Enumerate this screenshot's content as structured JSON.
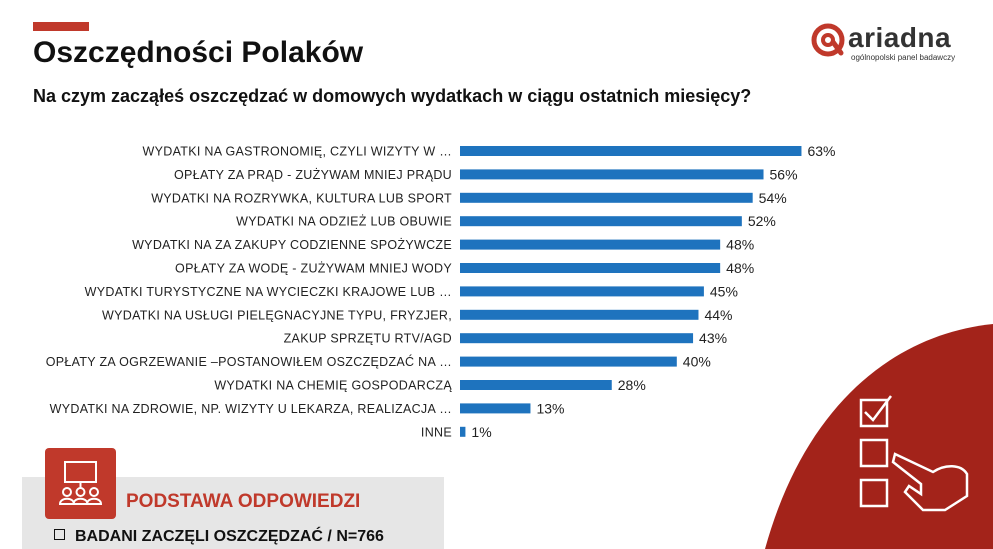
{
  "header": {
    "title": "Oszczędności Polaków",
    "question": "Na czym zacząłeś oszczędzać w domowych wydatkach w ciągu ostatnich miesięcy?"
  },
  "logo": {
    "name": "ariadna",
    "tagline": "ogólnopolski panel badawczy"
  },
  "colors": {
    "accent": "#c0392b",
    "bar": "#1e73be"
  },
  "base": {
    "heading": "PODSTAWA ODPOWIEDZI",
    "item": "BADANI ZACZĘLI OSZCZĘDZAĆ / N=766"
  },
  "chart_data": {
    "type": "bar",
    "orientation": "horizontal",
    "categories": [
      "WYDATKI NA GASTRONOMIĘ, CZYLI WIZYTY W …",
      "OPŁATY ZA PRĄD   - ZUŻYWAM MNIEJ PRĄDU",
      "WYDATKI NA ROZRYWKA, KULTURA LUB SPORT",
      "WYDATKI NA ODZIEŻ LUB OBUWIE",
      "WYDATKI NA ZA ZAKUPY CODZIENNE SPOŻYWCZE",
      "OPŁATY ZA WODĘ   - ZUŻYWAM MNIEJ WODY",
      "WYDATKI TURYSTYCZNE NA WYCIECZKI KRAJOWE LUB …",
      "WYDATKI NA USŁUGI PIELĘGNACYJNE TYPU, FRYZJER,",
      "ZAKUP SPRZĘTU RTV/AGD",
      "OPŁATY ZA OGRZEWANIE   –POSTANOWIŁEM OSZCZĘDZAĆ NA …",
      "WYDATKI NA CHEMIĘ GOSPODARCZĄ",
      "WYDATKI NA ZDROWIE, NP. WIZYTY U LEKARZA, REALIZACJA …",
      "INNE"
    ],
    "values": [
      63,
      56,
      54,
      52,
      48,
      48,
      45,
      44,
      43,
      40,
      28,
      13,
      1
    ],
    "value_labels": [
      "63%",
      "56%",
      "54%",
      "52%",
      "48%",
      "48%",
      "45%",
      "44%",
      "43%",
      "40%",
      "28%",
      "13%",
      "1%"
    ],
    "unit": "%",
    "xlim": [
      0,
      100
    ],
    "grid": false,
    "legend": "none"
  }
}
